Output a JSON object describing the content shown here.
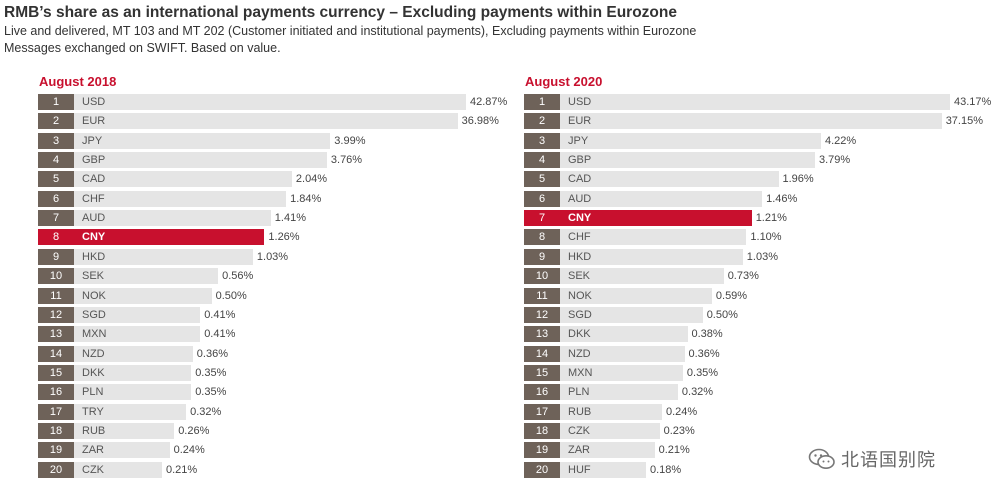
{
  "header": {
    "title": "RMB’s share as an international payments currency – Excluding payments within Eurozone",
    "subtitle_line1": "Live and delivered,  MT 103 and MT 202 (Customer initiated and institutional payments), Excluding payments within Eurozone",
    "subtitle_line2": "Messages exchanged on SWIFT. Based on value."
  },
  "watermark": {
    "text": "北语国别院"
  },
  "colors": {
    "highlight": "#c8102e",
    "rank_box": "#6e6259",
    "bar": "#e5e5e5",
    "title_red": "#c8102e"
  },
  "chart_data": [
    {
      "type": "bar",
      "orientation": "horizontal",
      "title": "August 2018",
      "highlight": "CNY",
      "ranks": [
        "1",
        "2",
        "3",
        "4",
        "5",
        "6",
        "7",
        "8",
        "9",
        "10",
        "11",
        "12",
        "13",
        "14",
        "15",
        "16",
        "17",
        "18",
        "19",
        "20"
      ],
      "categories": [
        "USD",
        "EUR",
        "JPY",
        "GBP",
        "CAD",
        "CHF",
        "AUD",
        "CNY",
        "HKD",
        "SEK",
        "NOK",
        "SGD",
        "MXN",
        "NZD",
        "DKK",
        "PLN",
        "TRY",
        "RUB",
        "ZAR",
        "CZK"
      ],
      "values": [
        42.87,
        36.98,
        3.99,
        3.76,
        2.04,
        1.84,
        1.41,
        1.26,
        1.03,
        0.56,
        0.5,
        0.41,
        0.41,
        0.36,
        0.35,
        0.35,
        0.32,
        0.26,
        0.24,
        0.21
      ],
      "labels": [
        "42.87%",
        "36.98%",
        "3.99%",
        "3.76%",
        "2.04%",
        "1.84%",
        "1.41%",
        "1.26%",
        "1.03%",
        "0.56%",
        "0.50%",
        "0.41%",
        "0.41%",
        "0.36%",
        "0.35%",
        "0.35%",
        "0.32%",
        "0.26%",
        "0.24%",
        "0.21%"
      ]
    },
    {
      "type": "bar",
      "orientation": "horizontal",
      "title": "August 2020",
      "highlight": "CNY",
      "ranks": [
        "1",
        "2",
        "3",
        "4",
        "5",
        "6",
        "7",
        "8",
        "9",
        "10",
        "11",
        "12",
        "13",
        "14",
        "15",
        "16",
        "17",
        "18",
        "19",
        "20"
      ],
      "categories": [
        "USD",
        "EUR",
        "JPY",
        "GBP",
        "CAD",
        "AUD",
        "CNY",
        "CHF",
        "HKD",
        "SEK",
        "NOK",
        "SGD",
        "DKK",
        "NZD",
        "MXN",
        "PLN",
        "RUB",
        "CZK",
        "ZAR",
        "HUF"
      ],
      "values": [
        43.17,
        37.15,
        4.22,
        3.79,
        1.96,
        1.46,
        1.21,
        1.1,
        1.03,
        0.73,
        0.59,
        0.5,
        0.38,
        0.36,
        0.35,
        0.32,
        0.24,
        0.23,
        0.21,
        0.18
      ],
      "labels": [
        "43.17%",
        "37.15%",
        "4.22%",
        "3.79%",
        "1.96%",
        "1.46%",
        "1.21%",
        "1.10%",
        "1.03%",
        "0.73%",
        "0.59%",
        "0.50%",
        "0.38%",
        "0.36%",
        "0.35%",
        "0.32%",
        "0.24%",
        "0.23%",
        "0.21%",
        "0.18%"
      ]
    }
  ]
}
